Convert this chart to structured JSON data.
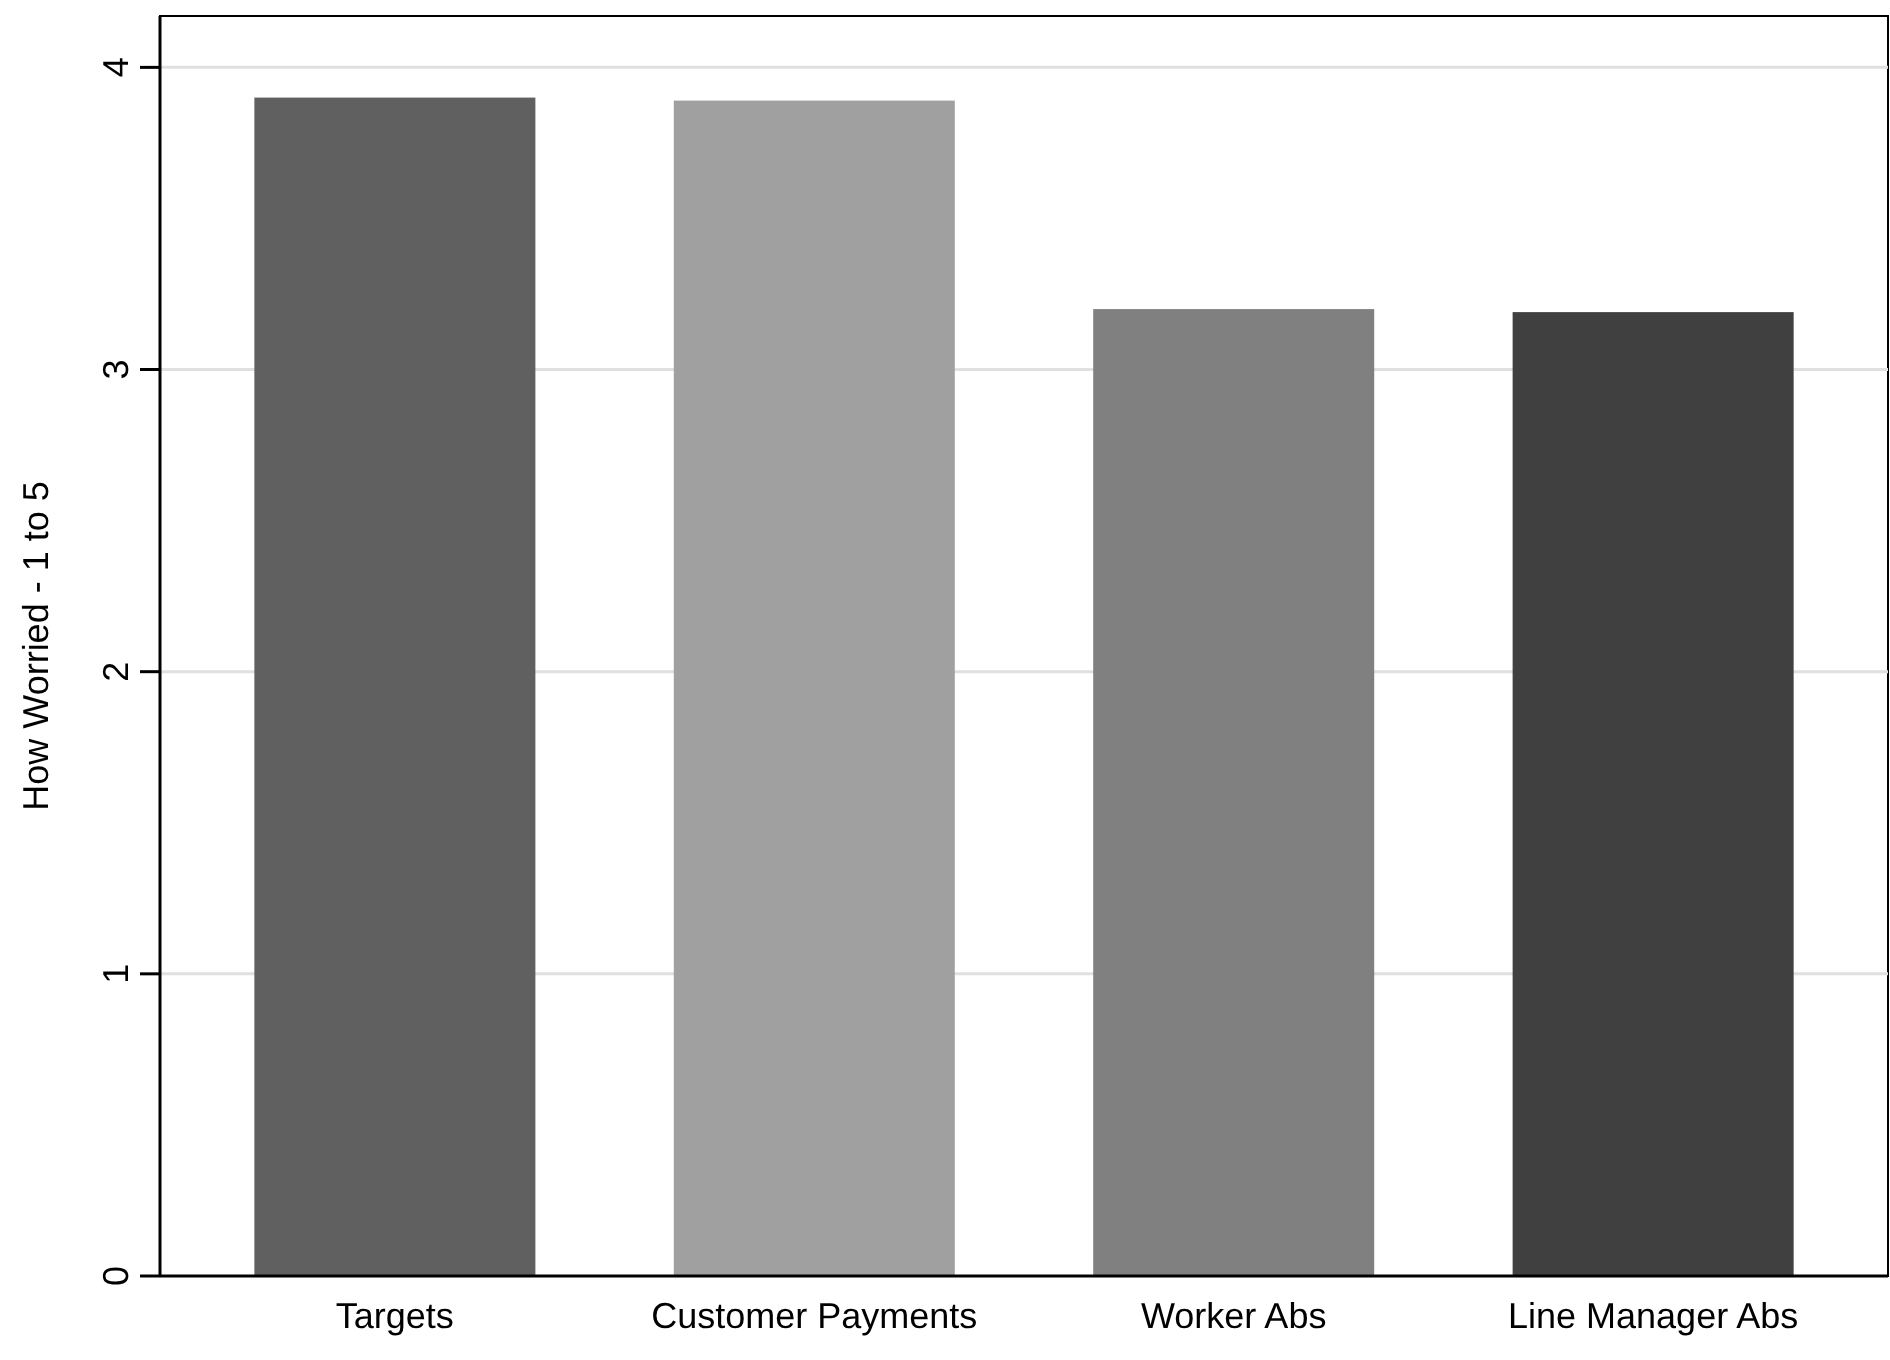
{
  "chart_data": {
    "type": "bar",
    "ylabel": "How Worried - 1 to 5",
    "categories": [
      "Targets",
      "Customer Payments",
      "Worker Abs",
      "Line Manager Abs"
    ],
    "values": [
      3.9,
      3.89,
      3.2,
      3.19
    ],
    "colors": [
      "#606060",
      "#a0a0a0",
      "#808080",
      "#404040"
    ],
    "ylim": [
      0,
      4.17
    ],
    "yticks": [
      0,
      1,
      2,
      3,
      4
    ],
    "grid": "y"
  }
}
